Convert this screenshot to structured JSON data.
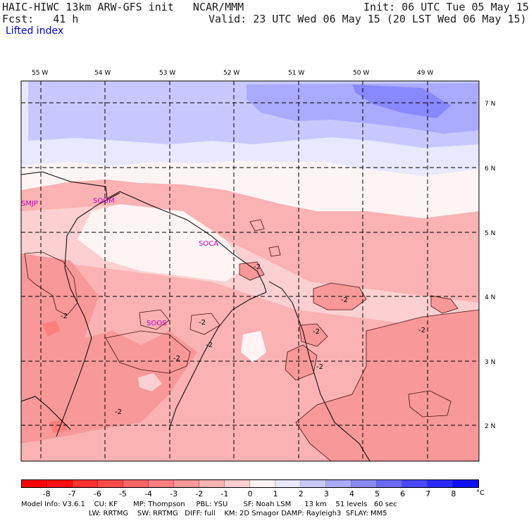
{
  "header": {
    "title": "HAIC-HIWC 13km ARW-GFS init   NCAR/MMM",
    "init": "Init: 06 UTC Tue 05 May 15",
    "fcst": "Fcst:   41 h",
    "valid": "Valid: 23 UTC Wed 06 May 15 (20 LST Wed 06 May 15)",
    "field": "Lifted index"
  },
  "axes": {
    "lon_labels": [
      "55 W",
      "54 W",
      "53 W",
      "52 W",
      "51 W",
      "50 W",
      "49 W"
    ],
    "lat_labels": [
      "7 N",
      "6 N",
      "5 N",
      "4 N",
      "3 N",
      "2 N"
    ]
  },
  "stations": [
    "SMJP",
    "SOGM",
    "SOCA",
    "SOOS"
  ],
  "contour_labels": [
    "-2",
    "-2",
    "-2",
    "-2",
    "-2",
    "-2",
    "-2",
    "-2",
    "-2",
    "-2"
  ],
  "colorbar": {
    "ticks": [
      "-8",
      "-7",
      "-6",
      "-5",
      "-4",
      "-3",
      "-2",
      "-1",
      "0",
      "1",
      "2",
      "3",
      "4",
      "5",
      "6",
      "7",
      "8"
    ],
    "unit": "°C",
    "colors": [
      "#ff1010",
      "#ff3030",
      "#ff4a4a",
      "#ff6464",
      "#ff7e7e",
      "#f89898",
      "#fab2b2",
      "#fcd0d0",
      "#fff4f4",
      "#e8e8fe",
      "#c8c8fe",
      "#aaaaff",
      "#8888ff",
      "#6a6aff",
      "#4848ff",
      "#2a2aff",
      "#0e0eff"
    ]
  },
  "footer": {
    "line1": "Model Info: V3.6.1    CU: KF       MP: Thompson     PBL: YSU       SF: Noah LSM      13 km    51 levels   60 sec",
    "line2": "LW: RRTMG    SW: RRTMG   DIFF: full    KM: 2D Smagor DAMP: Rayleigh3  SFLAY: MM5"
  }
}
